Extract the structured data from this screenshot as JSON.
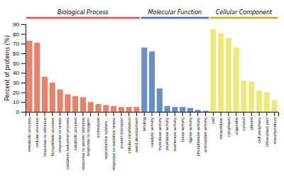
{
  "chart_data": {
    "type": "bar",
    "categories": [
      "metabolic process",
      "cellular process",
      "response to stimulus",
      "biosynthetic process",
      "response to stress",
      "oxidation-reduction process",
      "catabolic process",
      "response to abiotic stimulus",
      "response to oxygen-\n...",
      "proteolysis",
      "reproductive system...",
      "response to oxidative stress",
      "protein transport",
      "cellular localization",
      "seed development",
      "binding",
      "catalytic activity",
      "hydrolase activity",
      "peptidase activity",
      "isomerase activity",
      "lyase activity",
      "ligase activity",
      "phosphatase activity",
      "antioxidant activity",
      "cell",
      "intracellular",
      "cytoplasm",
      "organelle",
      "cytosol",
      "plastid",
      "cell periphery",
      "chloroplast part",
      "mitochondrion"
    ],
    "values": [
      73,
      71,
      36,
      30,
      23,
      18,
      16,
      15,
      10,
      8,
      7,
      6,
      5,
      5,
      5,
      66,
      62,
      24,
      6,
      5,
      5,
      4,
      2,
      1,
      85,
      81,
      76,
      66,
      32,
      31,
      22,
      20,
      12
    ],
    "colors": [
      "#E8826A",
      "#E8826A",
      "#E8826A",
      "#E8826A",
      "#E8826A",
      "#E8826A",
      "#E8826A",
      "#E8826A",
      "#E8826A",
      "#E8826A",
      "#E8826A",
      "#E8826A",
      "#E8826A",
      "#E8826A",
      "#E8826A",
      "#6B8EC7",
      "#6B8EC7",
      "#6B8EC7",
      "#6B8EC7",
      "#6B8EC7",
      "#6B8EC7",
      "#6B8EC7",
      "#6B8EC7",
      "#6B8EC7",
      "#EDE87A",
      "#EDE87A",
      "#EDE87A",
      "#EDE87A",
      "#EDE87A",
      "#EDE87A",
      "#EDE87A",
      "#EDE87A",
      "#EDE87A"
    ],
    "groups": [
      {
        "name": "Biological Process",
        "color": "#E05050",
        "start": "metabolic process",
        "end": "seed development"
      },
      {
        "name": "Molecular Function",
        "color": "#4466CC",
        "start": "binding",
        "end": "antioxidant activity"
      },
      {
        "name": "Cellular Component",
        "color": "#C8A820",
        "start": "cell",
        "end": "mitochondrion"
      }
    ],
    "ylabel": "Percent of proteins (%)",
    "ylim": [
      0,
      90
    ],
    "yticks": [
      0,
      10,
      20,
      30,
      40,
      50,
      60,
      70,
      80,
      90
    ],
    "grid": false
  }
}
